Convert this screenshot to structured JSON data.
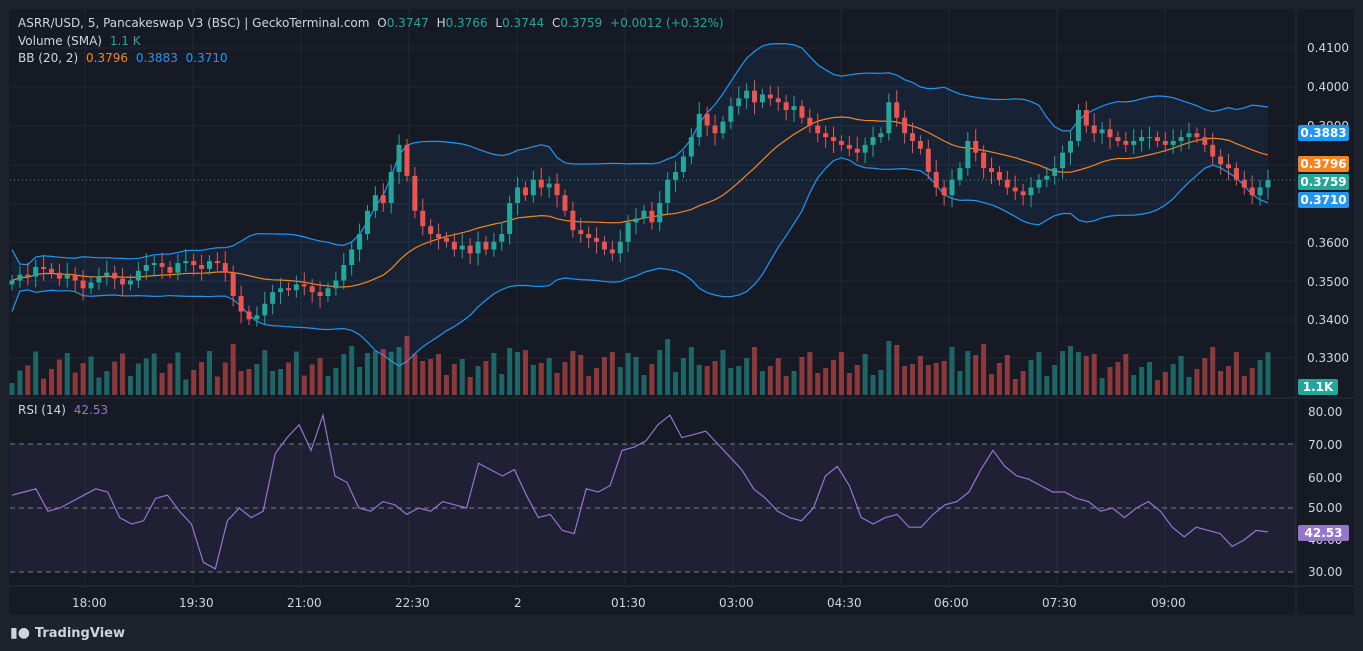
{
  "header": {
    "symbol": "ASRR/USD, 5, Pancakeswap V3 (BSC) | GeckoTerminal.com",
    "o_label": "O",
    "o_val": "0.3747",
    "h_label": "H",
    "h_val": "0.3766",
    "l_label": "L",
    "l_val": "0.3744",
    "c_label": "C",
    "c_val": "0.3759",
    "change": "+0.0012 (+0.32%)"
  },
  "volume_legend": {
    "label": "Volume (SMA)",
    "value": "1.1 K"
  },
  "bb_legend": {
    "label": "BB (20, 2)",
    "basis": "0.3796",
    "upper": "0.3883",
    "lower": "0.3710"
  },
  "rsi_legend": {
    "label": "RSI (14)",
    "value": "42.53"
  },
  "price_tags": {
    "upper": "0.3883",
    "basis": "0.3796",
    "close": "0.3759",
    "lower": "0.3710",
    "volume": "1.1K",
    "rsi": "42.53"
  },
  "colors": {
    "up": "#26a69a",
    "down": "#ef5350",
    "basis": "#f7841f",
    "band": "#2196f3",
    "rsi": "#9575cd"
  },
  "price_axis": [
    "0.4100",
    "0.4000",
    "0.3900",
    "0.3600",
    "0.3500",
    "0.3400",
    "0.3300"
  ],
  "rsi_axis": [
    "80.00",
    "70.00",
    "60.00",
    "50.00",
    "40.00",
    "30.00"
  ],
  "time_axis": [
    "18:00",
    "19:30",
    "21:00",
    "22:30",
    "2",
    "01:30",
    "03:00",
    "04:30",
    "06:00",
    "07:30",
    "09:00"
  ],
  "branding": "TradingView",
  "chart_data": {
    "type": "candlestick",
    "series_close": [
      0.35,
      0.3515,
      0.351,
      0.3535,
      0.353,
      0.352,
      0.3505,
      0.3515,
      0.35,
      0.348,
      0.3495,
      0.351,
      0.352,
      0.3505,
      0.349,
      0.35,
      0.3525,
      0.354,
      0.3545,
      0.3535,
      0.352,
      0.3545,
      0.355,
      0.354,
      0.353,
      0.355,
      0.3545,
      0.352,
      0.346,
      0.342,
      0.34,
      0.341,
      0.344,
      0.347,
      0.348,
      0.3475,
      0.349,
      0.3485,
      0.347,
      0.346,
      0.348,
      0.35,
      0.354,
      0.358,
      0.362,
      0.368,
      0.372,
      0.37,
      0.378,
      0.385,
      0.377,
      0.368,
      0.364,
      0.362,
      0.361,
      0.36,
      0.358,
      0.359,
      0.357,
      0.36,
      0.358,
      0.36,
      0.362,
      0.37,
      0.374,
      0.372,
      0.376,
      0.374,
      0.375,
      0.372,
      0.368,
      0.363,
      0.362,
      0.361,
      0.36,
      0.358,
      0.357,
      0.36,
      0.365,
      0.366,
      0.368,
      0.365,
      0.37,
      0.376,
      0.378,
      0.382,
      0.387,
      0.393,
      0.39,
      0.388,
      0.391,
      0.395,
      0.397,
      0.399,
      0.396,
      0.398,
      0.397,
      0.396,
      0.394,
      0.395,
      0.392,
      0.39,
      0.388,
      0.387,
      0.386,
      0.385,
      0.384,
      0.383,
      0.385,
      0.387,
      0.388,
      0.396,
      0.392,
      0.388,
      0.386,
      0.384,
      0.378,
      0.374,
      0.372,
      0.376,
      0.379,
      0.386,
      0.383,
      0.379,
      0.378,
      0.376,
      0.374,
      0.373,
      0.372,
      0.374,
      0.376,
      0.377,
      0.379,
      0.383,
      0.386,
      0.394,
      0.39,
      0.388,
      0.389,
      0.387,
      0.386,
      0.385,
      0.386,
      0.387,
      0.387,
      0.386,
      0.385,
      0.386,
      0.387,
      0.388,
      0.387,
      0.385,
      0.382,
      0.38,
      0.379,
      0.376,
      0.374,
      0.372,
      0.374,
      0.3759
    ],
    "rsi": [
      54,
      55,
      56,
      49,
      50,
      52,
      54,
      56,
      55,
      47,
      45,
      46,
      53,
      54,
      49,
      45,
      33,
      31,
      46,
      50,
      47,
      49,
      67,
      72,
      76,
      68,
      79,
      60,
      58,
      50,
      49,
      52,
      51,
      48,
      50,
      49,
      52,
      51,
      50,
      64,
      62,
      60,
      62,
      54,
      47,
      48,
      43,
      42,
      56,
      55,
      57,
      68,
      69,
      71,
      76,
      79,
      72,
      73,
      74,
      70,
      66,
      62,
      56,
      53,
      49,
      47,
      46,
      50,
      60,
      63,
      57,
      47,
      45,
      47,
      48,
      44,
      44,
      48,
      51,
      52,
      55,
      62,
      68,
      63,
      60,
      59,
      57,
      55,
      55,
      53,
      52,
      49,
      50,
      47,
      50,
      52,
      49,
      44,
      41,
      44,
      43,
      42,
      38,
      40,
      43,
      42.53
    ]
  }
}
